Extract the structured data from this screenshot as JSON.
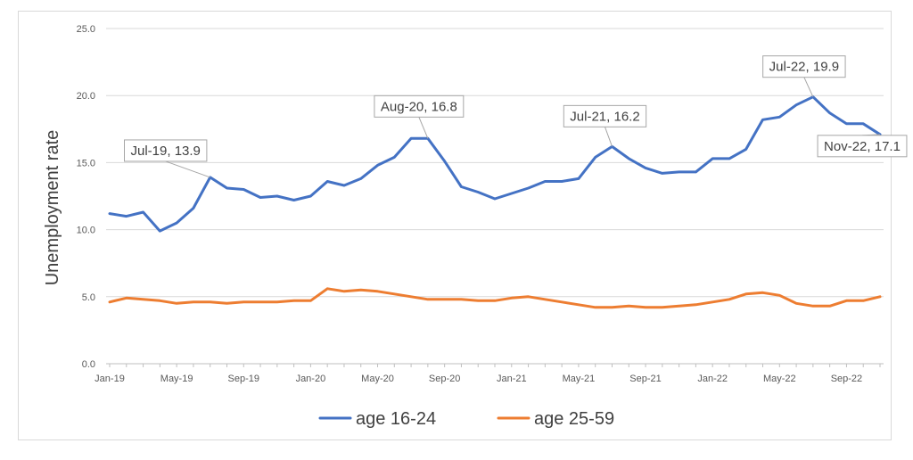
{
  "chart_data": {
    "type": "line",
    "title": "",
    "xlabel": "",
    "ylabel": "Unemployment rate",
    "ylim": [
      0,
      25
    ],
    "yticks": [
      "0.0",
      "5.0",
      "10.0",
      "15.0",
      "20.0",
      "25.0"
    ],
    "x": [
      "Jan-19",
      "Feb-19",
      "Mar-19",
      "Apr-19",
      "May-19",
      "Jun-19",
      "Jul-19",
      "Aug-19",
      "Sep-19",
      "Oct-19",
      "Nov-19",
      "Dec-19",
      "Jan-20",
      "Feb-20",
      "Mar-20",
      "Apr-20",
      "May-20",
      "Jun-20",
      "Jul-20",
      "Aug-20",
      "Sep-20",
      "Oct-20",
      "Nov-20",
      "Dec-20",
      "Jan-21",
      "Feb-21",
      "Mar-21",
      "Apr-21",
      "May-21",
      "Jun-21",
      "Jul-21",
      "Aug-21",
      "Sep-21",
      "Oct-21",
      "Nov-21",
      "Dec-21",
      "Jan-22",
      "Feb-22",
      "Mar-22",
      "Apr-22",
      "May-22",
      "Jun-22",
      "Jul-22",
      "Aug-22",
      "Sep-22",
      "Oct-22",
      "Nov-22"
    ],
    "xtick_labels": [
      "Jan-19",
      "May-19",
      "Sep-19",
      "Jan-20",
      "May-20",
      "Sep-20",
      "Jan-21",
      "May-21",
      "Sep-21",
      "Jan-22",
      "May-22",
      "Sep-22"
    ],
    "grid": true,
    "legend_position": "bottom",
    "series": [
      {
        "name": "age 16-24",
        "color": "#4472C4",
        "values": [
          11.2,
          11.0,
          11.3,
          9.9,
          10.5,
          11.6,
          13.9,
          13.1,
          13.0,
          12.4,
          12.5,
          12.2,
          12.5,
          13.6,
          13.3,
          13.8,
          14.8,
          15.4,
          16.8,
          16.8,
          15.1,
          13.2,
          12.8,
          12.3,
          12.7,
          13.1,
          13.6,
          13.6,
          13.8,
          15.4,
          16.2,
          15.3,
          14.6,
          14.2,
          14.3,
          14.3,
          15.3,
          15.3,
          16.0,
          18.2,
          18.4,
          19.3,
          19.9,
          18.7,
          17.9,
          17.9,
          17.1
        ]
      },
      {
        "name": "age 25-59",
        "color": "#ED7D31",
        "values": [
          4.6,
          4.9,
          4.8,
          4.7,
          4.5,
          4.6,
          4.6,
          4.5,
          4.6,
          4.6,
          4.6,
          4.7,
          4.7,
          5.6,
          5.4,
          5.5,
          5.4,
          5.2,
          5.0,
          4.8,
          4.8,
          4.8,
          4.7,
          4.7,
          4.9,
          5.0,
          4.8,
          4.6,
          4.4,
          4.2,
          4.2,
          4.3,
          4.2,
          4.2,
          4.3,
          4.4,
          4.6,
          4.8,
          5.2,
          5.3,
          5.1,
          4.5,
          4.3,
          4.3,
          4.7,
          4.7,
          5.0
        ]
      }
    ],
    "annotations": [
      {
        "label": "Jul-19, 13.9",
        "series": 0,
        "x": "Jul-19",
        "y": 13.9
      },
      {
        "label": "Aug-20, 16.8",
        "series": 0,
        "x": "Aug-20",
        "y": 16.8
      },
      {
        "label": "Jul-21, 16.2",
        "series": 0,
        "x": "Jul-21",
        "y": 16.2
      },
      {
        "label": "Jul-22, 19.9",
        "series": 0,
        "x": "Jul-22",
        "y": 19.9
      },
      {
        "label": "Nov-22, 17.1",
        "series": 0,
        "x": "Nov-22",
        "y": 17.1
      }
    ]
  }
}
